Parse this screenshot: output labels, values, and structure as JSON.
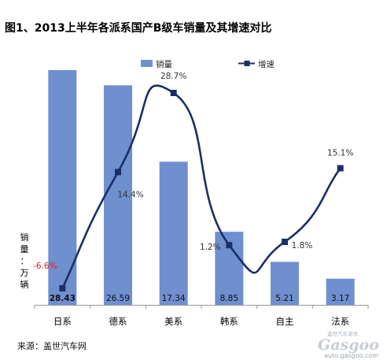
{
  "chart_data": {
    "type": "bar",
    "title": "图1、2013上半年各派系国产B级车销量及其增速对比",
    "categories": [
      "日系",
      "德系",
      "美系",
      "韩系",
      "自主",
      "法系"
    ],
    "ylabel_chars": [
      "销",
      "量",
      "：",
      "万",
      "辆"
    ],
    "legend": [
      {
        "name": "销量",
        "kind": "bar"
      },
      {
        "name": "增速",
        "kind": "line"
      }
    ],
    "series": [
      {
        "name": "销量",
        "type": "bar",
        "axis": "left",
        "values": [
          28.43,
          26.59,
          17.34,
          8.85,
          5.21,
          3.17
        ],
        "value_labels": [
          "28.43",
          "26.59",
          "17.34",
          "8.85",
          "5.21",
          "3.17"
        ]
      },
      {
        "name": "增速",
        "type": "line",
        "axis": "right",
        "values": [
          -6.6,
          14.4,
          28.7,
          1.2,
          1.8,
          15.1
        ],
        "value_labels": [
          "-6.6%",
          "14.4%",
          "28.7%",
          "1.2%",
          "1.8%",
          "15.1%"
        ]
      }
    ],
    "ylim_left": [
      0,
      28.43
    ],
    "ylim_right": [
      -6.6,
      28.7
    ],
    "grid": false,
    "legend_position": "top",
    "colors": {
      "bar": "#6f8fcf",
      "line": "#1a2f66",
      "negative_label": "#e0201a",
      "axis": "#999999"
    }
  },
  "source": "来源：盖世汽车网",
  "watermark": {
    "main": "Gasgoo",
    "sub": "盖世汽车资讯",
    "url": "auto.gasgoo.com"
  }
}
